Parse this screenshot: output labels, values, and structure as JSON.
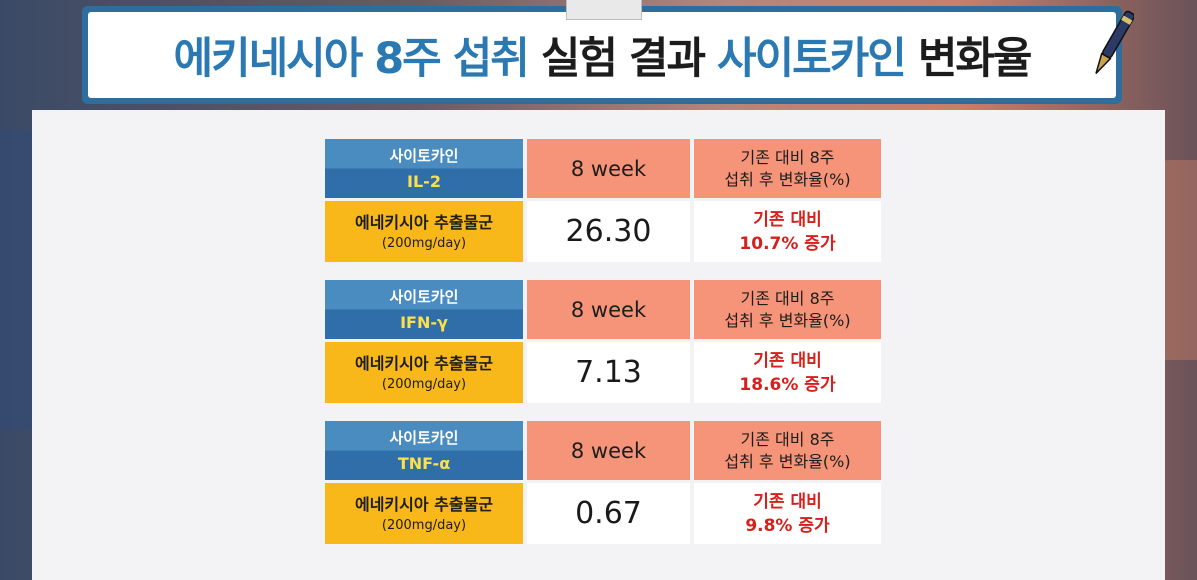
{
  "title": {
    "part1": "에키네시아 8주 섭취",
    "part2": "실험 결과",
    "part3": "사이토카인",
    "part4": "변화율"
  },
  "icons": {
    "pen": "pen-icon",
    "clip": "clipboard-clip"
  },
  "colors": {
    "title_blue": "#2a79b3",
    "cytokine_header": "#2f6ea8",
    "salmon": "#f59478",
    "gold": "#f9b81a",
    "increase_red": "#d5201b"
  },
  "rows": [
    {
      "cytokine_label": "사이토카인",
      "cytokine_code": "IL-2",
      "week": "8 week",
      "change_header_line1": "기존 대비 8주",
      "change_header_line2": "섭취 후 변화율(%)",
      "extract_name": "에네키시아 추출물군",
      "dose": "(200mg/day)",
      "value": "26.30",
      "change_line1": "기존 대비",
      "change_line2": "10.7% 증가"
    },
    {
      "cytokine_label": "사이토카인",
      "cytokine_code": "IFN-γ",
      "week": "8 week",
      "change_header_line1": "기존 대비 8주",
      "change_header_line2": "섭취 후 변화율(%)",
      "extract_name": "에네키시아 추출물군",
      "dose": "(200mg/day)",
      "value": "7.13",
      "change_line1": "기존 대비",
      "change_line2": "18.6% 증가"
    },
    {
      "cytokine_label": "사이토카인",
      "cytokine_code": "TNF-α",
      "week": "8 week",
      "change_header_line1": "기존 대비 8주",
      "change_header_line2": "섭취 후 변화율(%)",
      "extract_name": "에네키시아 추출물군",
      "dose": "(200mg/day)",
      "value": "0.67",
      "change_line1": "기존 대비",
      "change_line2": "9.8% 증가"
    }
  ]
}
